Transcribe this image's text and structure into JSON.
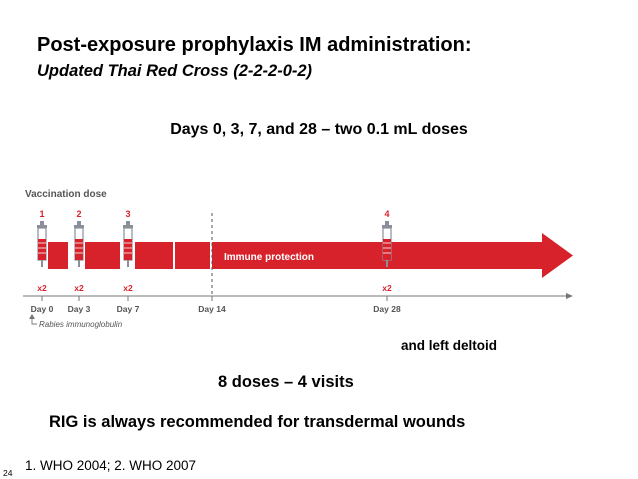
{
  "slide": {
    "title": "Post-exposure prophylaxis IM administration:",
    "subtitle": "Updated Thai Red Cross (2-2-2-0-2)",
    "schedule_text": "Days 0, 3, 7, and 28 – two 0.1 mL doses",
    "deltoid_note": "and left deltoid",
    "visits_text": "8 doses – 4 visits",
    "rig_text": "RIG is always recommended for transdermal wounds",
    "references": "1. WHO 2004; 2. WHO 2007",
    "slide_number": "24"
  },
  "diagram": {
    "heading": "Vaccination dose",
    "bar_label": "Immune protection",
    "rig_note": "Rabies immunoglobulin",
    "colors": {
      "accent": "#d7222b",
      "text_grey": "#555555",
      "syringe": "#8a8f99"
    },
    "doses": [
      {
        "number": "1",
        "multiplier": "x2",
        "day": "Day 0"
      },
      {
        "number": "2",
        "multiplier": "x2",
        "day": "Day 3"
      },
      {
        "number": "3",
        "multiplier": "x2",
        "day": "Day 7"
      },
      {
        "number": "4",
        "multiplier": "x2",
        "day": "Day 28"
      }
    ],
    "extra_day": "Day 14"
  }
}
